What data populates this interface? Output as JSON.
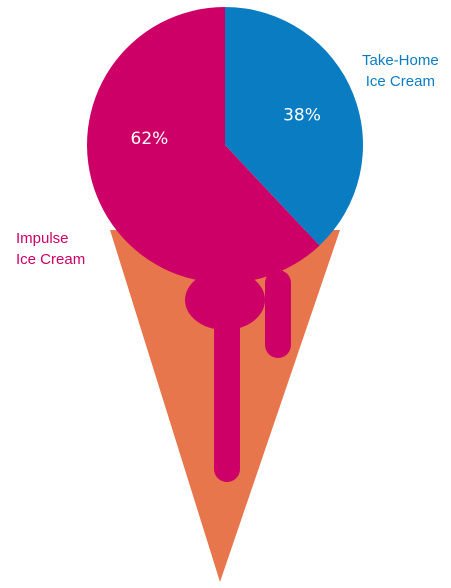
{
  "chart_data": {
    "type": "pie",
    "categories": [
      "Take-Home Ice Cream",
      "Impulse Ice Cream"
    ],
    "values": [
      38,
      62
    ],
    "unit": "%",
    "value_labels": [
      "38%",
      "62%"
    ],
    "legend": [
      {
        "line1": "Take-Home",
        "line2": "Ice Cream",
        "color": "#0a7dc2"
      },
      {
        "line1": "Impulse",
        "line2": "Ice Cream",
        "color": "#cc0066"
      }
    ],
    "cone_color": "#e8764d"
  }
}
